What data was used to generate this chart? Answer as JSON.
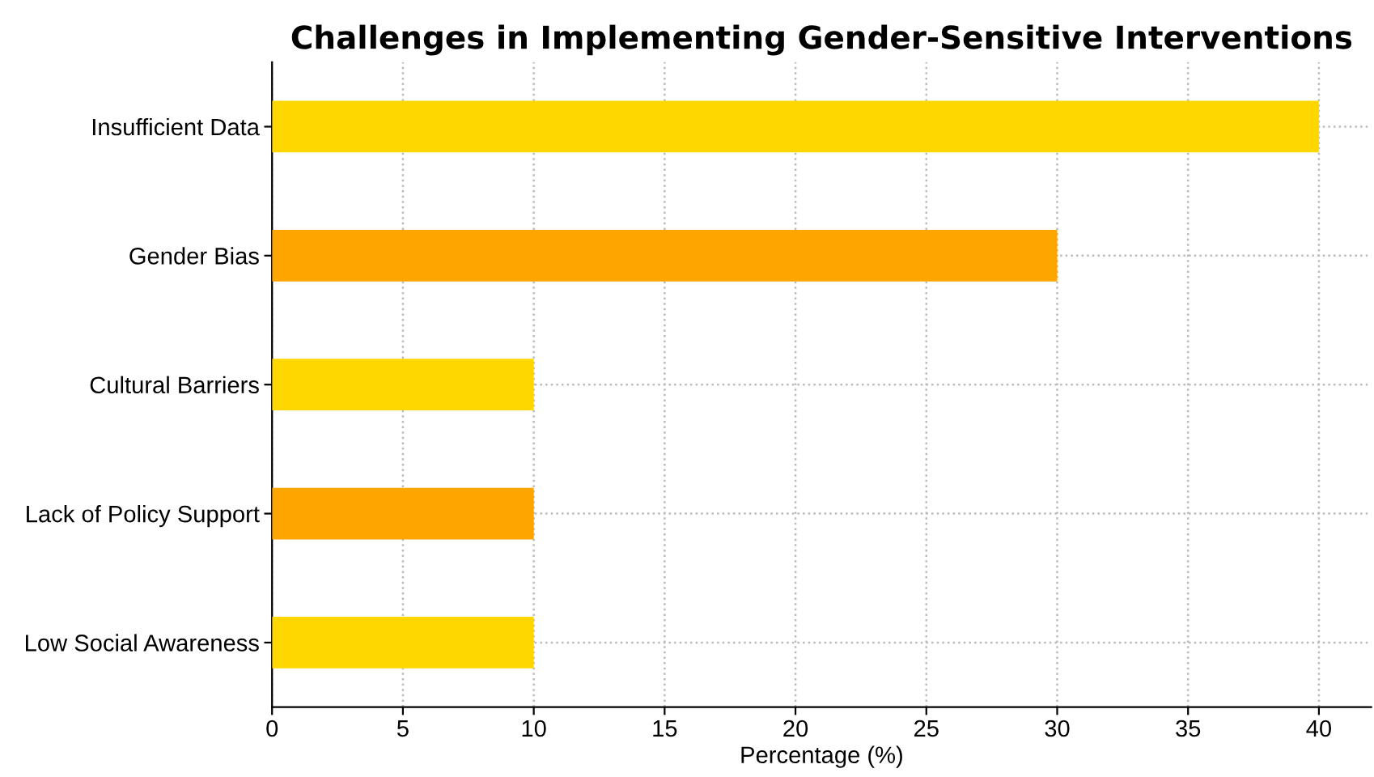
{
  "chart_data": {
    "type": "bar",
    "orientation": "horizontal",
    "title": "Challenges in Implementing Gender-Sensitive Interventions",
    "xlabel": "Percentage (%)",
    "categories": [
      "Insufficient Data",
      "Gender Bias",
      "Cultural Barriers",
      "Lack of Policy Support",
      "Low Social Awareness"
    ],
    "values": [
      40,
      30,
      10,
      10,
      10
    ],
    "colors": [
      "#ffd700",
      "#ffa500",
      "#ffd700",
      "#ffa500",
      "#ffd700"
    ],
    "xlim": [
      0,
      42
    ],
    "xticks": [
      0,
      5,
      10,
      15,
      20,
      25,
      30,
      35,
      40
    ],
    "grid": true
  }
}
